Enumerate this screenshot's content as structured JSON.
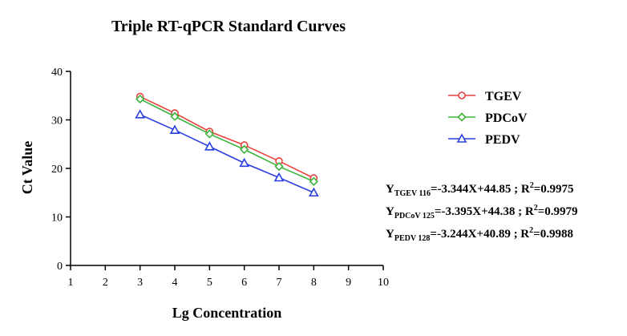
{
  "chart_data": {
    "type": "line",
    "title": "Triple RT-qPCR Standard Curves",
    "xlabel": "Lg Concentration",
    "ylabel": "Ct Value",
    "xlim": [
      1,
      10
    ],
    "ylim": [
      0,
      40
    ],
    "x_ticks": [
      "1",
      "2",
      "3",
      "4",
      "5",
      "6",
      "7",
      "8",
      "9",
      "10"
    ],
    "y_ticks": [
      "0",
      "10",
      "20",
      "30",
      "40"
    ],
    "legend_position": "right",
    "grid": false,
    "x": [
      3,
      4,
      5,
      6,
      7,
      8
    ],
    "series": [
      {
        "name": "TGEV",
        "color": "#e8413c",
        "marker": "circle",
        "values": [
          34.8,
          31.4,
          27.6,
          24.8,
          21.5,
          18.0
        ]
      },
      {
        "name": "PDCoV",
        "color": "#3cb43c",
        "marker": "diamond",
        "values": [
          34.3,
          30.7,
          27.1,
          23.9,
          20.4,
          17.3
        ]
      },
      {
        "name": "PEDV",
        "color": "#2a3ee0",
        "marker": "triangle",
        "values": [
          31.1,
          27.9,
          24.5,
          21.1,
          18.1,
          15.0
        ]
      }
    ],
    "equations": [
      {
        "y": "Y",
        "sub": "TGEV 116",
        "rhs": "=-3.344X+44.85 ; R",
        "sup": "2",
        "r2": "=0.9975"
      },
      {
        "y": "Y",
        "sub": "PDCoV 125",
        "rhs": "=-3.395X+44.38 ; R",
        "sup": "2",
        "r2": "=0.9979"
      },
      {
        "y": "Y",
        "sub": "PEDV 128",
        "rhs": "=-3.244X+40.89 ;  R",
        "sup": "2",
        "r2": "=0.9988"
      }
    ]
  }
}
